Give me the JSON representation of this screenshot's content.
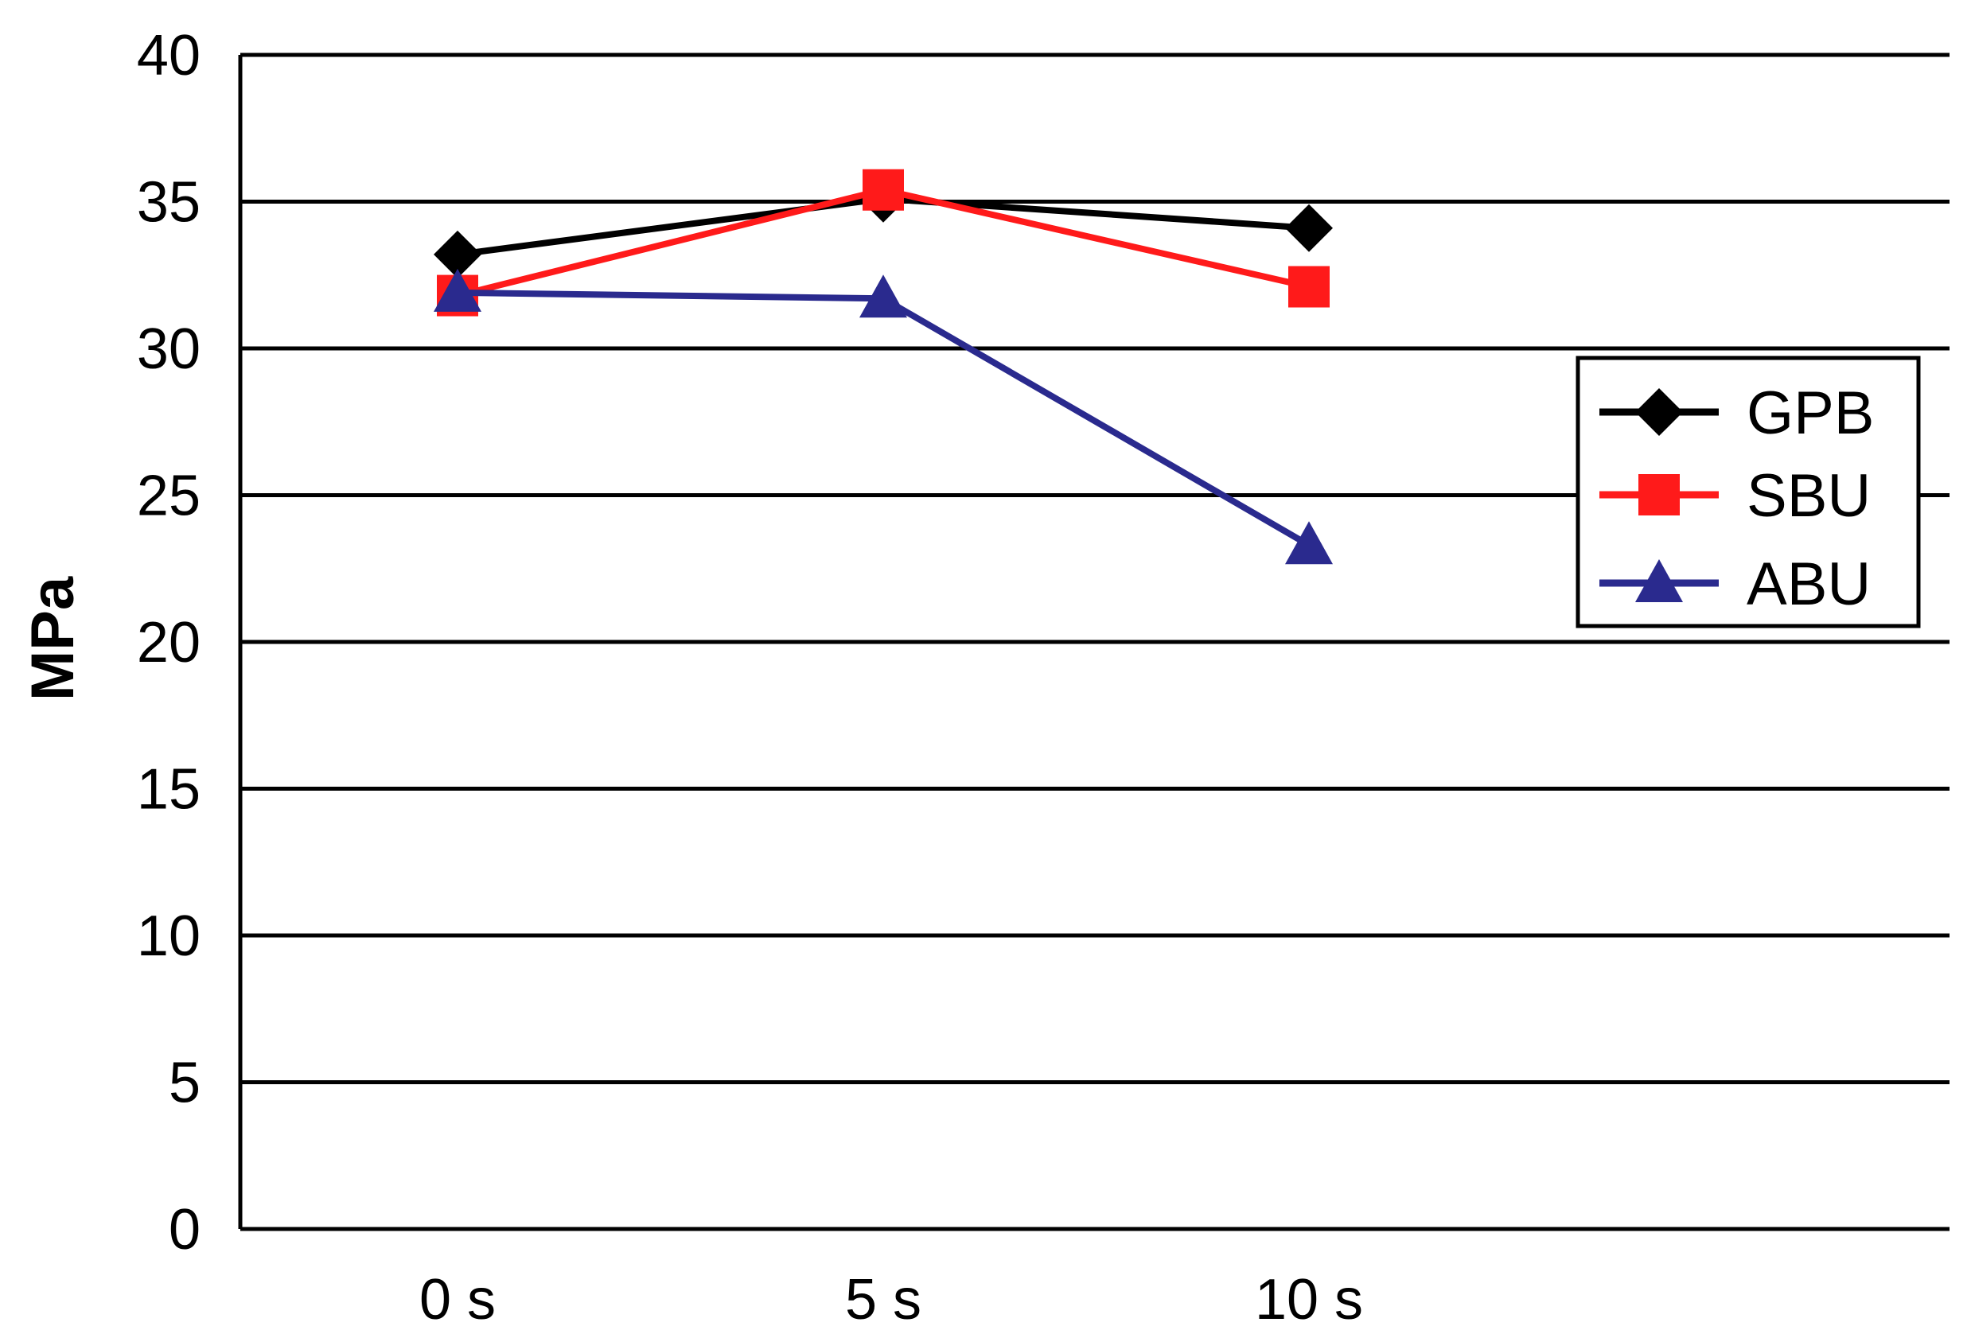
{
  "chart_data": {
    "type": "line",
    "categories": [
      "0 s",
      "5 s",
      "10 s"
    ],
    "ylabel": "MPa",
    "xlabel": "",
    "title": "",
    "ylim": [
      0,
      40
    ],
    "yticks": [
      0,
      5,
      10,
      15,
      20,
      25,
      30,
      35,
      40
    ],
    "grid": true,
    "legend_position": "right",
    "series": [
      {
        "name": "GPB",
        "color": "#000000",
        "marker": "diamond",
        "values": [
          33.2,
          35.1,
          34.1
        ]
      },
      {
        "name": "SBU",
        "color": "#ff1a1a",
        "marker": "square",
        "values": [
          31.8,
          35.4,
          32.1
        ]
      },
      {
        "name": "ABU",
        "color": "#2a2a8e",
        "marker": "triangle",
        "values": [
          31.9,
          31.7,
          23.3
        ]
      }
    ]
  }
}
